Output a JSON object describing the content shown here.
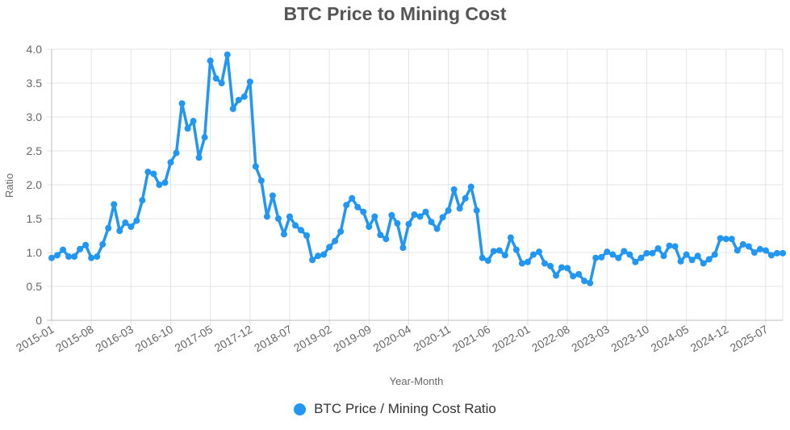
{
  "chart_data": {
    "type": "line",
    "title": "BTC Price to Mining Cost",
    "xlabel": "Year-Month",
    "ylabel": "Ratio",
    "ylim": [
      0,
      4
    ],
    "y_ticks": [
      "0",
      "0.5",
      "1.0",
      "1.5",
      "2.0",
      "2.5",
      "3.0",
      "3.5",
      "4.0"
    ],
    "x_tick_labels": [
      "2015-01",
      "2015-08",
      "2016-03",
      "2016-10",
      "2017-05",
      "2017-12",
      "2018-07",
      "2019-02",
      "2019-09",
      "2020-04",
      "2020-11",
      "2021-06",
      "2022-01",
      "2022-08",
      "2023-03",
      "2023-10",
      "2024-05",
      "2024-12",
      "2025-07"
    ],
    "grid": true,
    "legend_position": "bottom",
    "x_start": "2015-01",
    "series": [
      {
        "name": "BTC Price / Mining Cost Ratio",
        "color": "#2196f3",
        "values": [
          0.92,
          0.96,
          1.04,
          0.94,
          0.94,
          1.05,
          1.11,
          0.92,
          0.94,
          1.12,
          1.36,
          1.71,
          1.32,
          1.44,
          1.38,
          1.47,
          1.77,
          2.19,
          2.16,
          2.0,
          2.03,
          2.33,
          2.47,
          3.2,
          2.83,
          2.94,
          2.4,
          2.7,
          3.83,
          3.57,
          3.5,
          3.92,
          3.12,
          3.25,
          3.3,
          3.52,
          2.27,
          2.06,
          1.53,
          1.84,
          1.5,
          1.27,
          1.53,
          1.4,
          1.33,
          1.25,
          0.89,
          0.95,
          0.97,
          1.08,
          1.17,
          1.31,
          1.7,
          1.8,
          1.67,
          1.6,
          1.38,
          1.53,
          1.26,
          1.2,
          1.55,
          1.43,
          1.07,
          1.42,
          1.56,
          1.53,
          1.6,
          1.45,
          1.35,
          1.52,
          1.62,
          1.93,
          1.65,
          1.8,
          1.97,
          1.62,
          0.92,
          0.88,
          1.02,
          1.03,
          0.96,
          1.22,
          1.04,
          0.84,
          0.86,
          0.97,
          1.01,
          0.84,
          0.8,
          0.66,
          0.78,
          0.77,
          0.65,
          0.68,
          0.58,
          0.55,
          0.92,
          0.93,
          1.01,
          0.97,
          0.92,
          1.02,
          0.97,
          0.86,
          0.92,
          0.99,
          0.99,
          1.06,
          0.95,
          1.1,
          1.09,
          0.87,
          0.97,
          0.89,
          0.95,
          0.84,
          0.9,
          0.97,
          1.21,
          1.2,
          1.2,
          1.03,
          1.12,
          1.09,
          1.0,
          1.05,
          1.03,
          0.96,
          0.99,
          0.99
        ]
      }
    ]
  }
}
